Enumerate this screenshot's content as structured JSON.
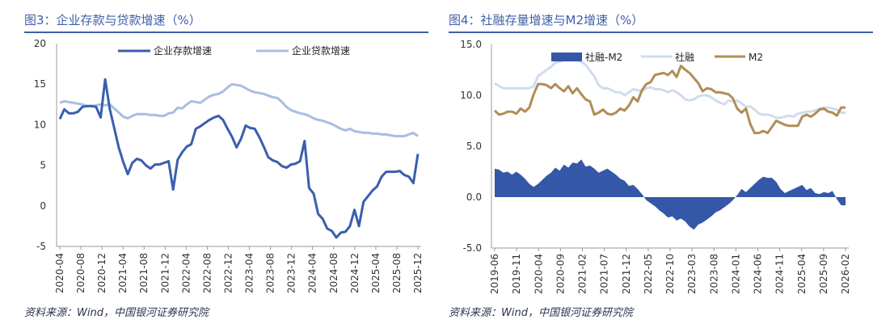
{
  "colors": {
    "accent": "#3f5fa8",
    "series_dark": "#3a5eae",
    "series_light": "#a9bde3",
    "series_gold": "#b08d57",
    "area_fill": "#3457a8"
  },
  "chart_data": [
    {
      "type": "line",
      "title": "图3：企业存款与贷款增速（%）",
      "source": "资料来源：Wind，中国银河证券研究院",
      "ylim": [
        -5,
        20
      ],
      "yticks": [
        "20",
        "15",
        "10",
        "5",
        "0",
        "-5"
      ],
      "ytick_values": [
        20,
        15,
        10,
        5,
        0,
        -5
      ],
      "xlabel": "",
      "ylabel": "",
      "x_start": "2020-04",
      "x_end": "2026-01",
      "x_tick_labels": [
        "2020-04",
        "2020-08",
        "2020-12",
        "2021-04",
        "2021-08",
        "2021-12",
        "2022-04",
        "2022-08",
        "2022-12",
        "2023-04",
        "2023-08",
        "2023-12",
        "2024-04",
        "2024-08",
        "2024-12",
        "2025-04",
        "2025-08",
        "2025-12"
      ],
      "series": [
        {
          "name": "企业存款增速",
          "values": [
            10.7,
            11.9,
            11.4,
            11.4,
            11.6,
            12.2,
            12.3,
            12.3,
            12.2,
            10.9,
            15.6,
            12.0,
            9.6,
            7.2,
            5.4,
            3.9,
            5.3,
            5.8,
            5.6,
            5.0,
            4.6,
            5.1,
            5.1,
            5.3,
            5.5,
            2.0,
            5.7,
            6.6,
            7.3,
            7.6,
            9.5,
            9.8,
            10.2,
            10.6,
            10.9,
            11.1,
            10.6,
            9.5,
            8.5,
            7.2,
            8.3,
            9.9,
            9.6,
            9.5,
            8.5,
            7.3,
            6.0,
            5.6,
            5.4,
            4.9,
            4.7,
            5.1,
            5.2,
            5.5,
            8.0,
            2.2,
            1.5,
            -1.0,
            -1.6,
            -2.8,
            -3.1,
            -3.9,
            -3.3,
            -3.2,
            -2.5,
            -0.5,
            -2.5,
            0.5,
            1.2,
            1.9,
            2.4,
            3.6,
            4.2,
            4.2,
            4.2,
            4.3,
            3.8,
            3.6,
            2.8,
            6.4
          ]
        },
        {
          "name": "企业贷款增速",
          "values": [
            12.7,
            12.9,
            12.8,
            12.7,
            12.6,
            12.5,
            12.3,
            12.3,
            12.4,
            12.5,
            12.4,
            12.5,
            12.0,
            11.5,
            11.0,
            10.8,
            11.1,
            11.3,
            11.3,
            11.3,
            11.2,
            11.2,
            11.1,
            11.1,
            11.4,
            11.5,
            12.1,
            12.0,
            12.5,
            12.9,
            12.8,
            12.7,
            13.1,
            13.5,
            13.7,
            13.8,
            14.1,
            14.6,
            15.0,
            14.9,
            14.8,
            14.5,
            14.2,
            14.0,
            13.9,
            13.8,
            13.6,
            13.4,
            13.3,
            12.8,
            12.2,
            11.8,
            11.6,
            11.4,
            11.3,
            11.1,
            10.8,
            10.6,
            10.5,
            10.3,
            10.1,
            9.8,
            9.5,
            9.3,
            9.5,
            9.2,
            9.1,
            9.0,
            9.0,
            8.9,
            8.9,
            8.8,
            8.8,
            8.7,
            8.6,
            8.6,
            8.6,
            8.8,
            9.0,
            8.6
          ]
        }
      ]
    },
    {
      "type": "line",
      "title": "图4：社融存量增速与M2增速（%）",
      "source": "资料来源：Wind，中国银河证券研究院",
      "ylim": [
        -5.0,
        15.0
      ],
      "yticks": [
        "15.0",
        "10.0",
        "5.0",
        "0.0",
        "-5.0"
      ],
      "ytick_values": [
        15,
        10,
        5,
        0,
        -5
      ],
      "xlabel": "",
      "ylabel": "",
      "x_start": "2019-06",
      "x_end": "2026-02",
      "x_tick_labels": [
        "2019-06",
        "2019-11",
        "2020-04",
        "2020-09",
        "2021-02",
        "2021-07",
        "2021-12",
        "2022-05",
        "2022-10",
        "2023-03",
        "2023-08",
        "2024-01",
        "2024-06",
        "2024-11",
        "2025-04",
        "2025-09",
        "2026-02"
      ],
      "series": [
        {
          "name": "社融-M2",
          "style": "area",
          "values": [
            2.8,
            2.7,
            2.4,
            2.5,
            2.2,
            2.5,
            2.2,
            1.8,
            1.3,
            1.0,
            1.3,
            1.7,
            2.1,
            2.4,
            2.9,
            2.6,
            3.2,
            2.9,
            3.4,
            3.3,
            3.7,
            3.0,
            3.1,
            2.8,
            2.4,
            2.6,
            2.8,
            2.5,
            2.2,
            1.8,
            1.6,
            1.1,
            1.2,
            0.8,
            0.3,
            -0.3,
            -0.6,
            -0.9,
            -1.3,
            -1.6,
            -2.0,
            -1.9,
            -2.3,
            -2.1,
            -2.4,
            -2.9,
            -3.2,
            -2.7,
            -2.5,
            -2.2,
            -1.9,
            -1.5,
            -1.3,
            -1.0,
            -0.7,
            -0.3,
            0.2,
            0.8,
            0.5,
            0.9,
            1.3,
            1.7,
            2.0,
            1.9,
            1.9,
            1.5,
            0.8,
            0.4,
            0.6,
            0.8,
            1.0,
            1.2,
            0.7,
            0.9,
            0.4,
            0.3,
            0.5,
            0.4,
            0.6,
            -0.2,
            -0.8,
            -0.8
          ]
        },
        {
          "name": "社融",
          "style": "line",
          "values": [
            11.2,
            10.9,
            10.7,
            10.7,
            10.7,
            10.7,
            10.7,
            10.7,
            10.7,
            10.9,
            11.9,
            12.2,
            12.5,
            12.8,
            13.2,
            13.3,
            13.5,
            13.6,
            13.7,
            13.5,
            13.3,
            13.0,
            12.4,
            11.9,
            11.0,
            10.7,
            10.7,
            10.5,
            10.3,
            10.3,
            10.0,
            10.3,
            10.6,
            10.5,
            10.4,
            10.7,
            10.8,
            10.6,
            10.6,
            10.5,
            10.3,
            10.5,
            10.3,
            10.0,
            9.6,
            9.5,
            9.6,
            9.9,
            10.0,
            10.0,
            9.8,
            9.5,
            9.3,
            9.1,
            9.5,
            9.4,
            9.5,
            9.2,
            8.9,
            8.9,
            8.6,
            8.2,
            8.1,
            8.1,
            8.0,
            7.8,
            7.8,
            7.9,
            8.0,
            7.9,
            8.2,
            8.3,
            8.4,
            8.4,
            8.5,
            8.7,
            8.8,
            8.8,
            8.7,
            8.6,
            8.3,
            8.3
          ]
        },
        {
          "name": "M2",
          "style": "line",
          "values": [
            8.5,
            8.1,
            8.2,
            8.4,
            8.4,
            8.2,
            8.7,
            8.4,
            8.8,
            10.1,
            11.1,
            11.1,
            11.0,
            10.7,
            11.1,
            10.7,
            10.4,
            10.9,
            10.2,
            10.7,
            10.1,
            9.6,
            9.4,
            8.1,
            8.3,
            8.6,
            8.2,
            8.1,
            8.3,
            8.7,
            8.5,
            9.0,
            9.8,
            9.4,
            10.5,
            11.1,
            11.3,
            12.0,
            12.1,
            12.2,
            12.0,
            12.4,
            11.8,
            12.9,
            12.5,
            12.2,
            11.7,
            11.2,
            10.4,
            10.7,
            10.6,
            10.3,
            10.3,
            10.2,
            10.1,
            9.7,
            8.7,
            8.3,
            8.7,
            7.2,
            6.3,
            6.3,
            6.5,
            6.3,
            6.9,
            7.5,
            7.3,
            7.1,
            7.0,
            7.0,
            7.0,
            7.9,
            8.1,
            7.9,
            8.2,
            8.6,
            8.7,
            8.4,
            8.3,
            8.0,
            8.8,
            8.8
          ]
        }
      ]
    }
  ]
}
